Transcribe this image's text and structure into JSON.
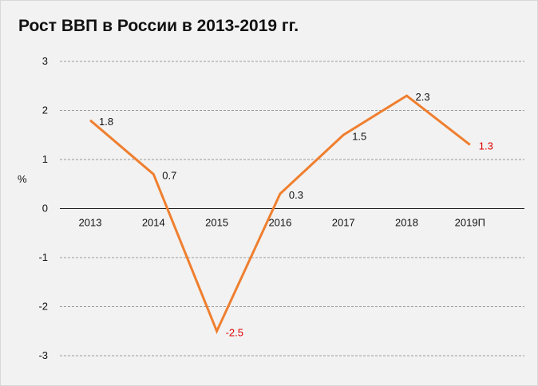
{
  "chart_data": {
    "type": "line",
    "title": "Рост ВВП в России в 2013-2019 гг.",
    "ylabel": "%",
    "xlabel": "",
    "ylim": [
      -3,
      3
    ],
    "yticks": [
      3,
      2,
      1,
      0,
      -1,
      -2,
      -3
    ],
    "categories": [
      "2013",
      "2014",
      "2015",
      "2016",
      "2017",
      "2018",
      "2019П"
    ],
    "series": [
      {
        "values": [
          1.8,
          0.7,
          -2.5,
          0.3,
          1.5,
          2.3,
          1.3
        ],
        "labels": [
          "1.8",
          "0.7",
          "-2.5",
          "0.3",
          "1.5",
          "2.3",
          "1.3"
        ],
        "label_colors": [
          "#111111",
          "#111111",
          "#e00000",
          "#111111",
          "#111111",
          "#111111",
          "#e00000"
        ],
        "color": "#ef7f2f"
      }
    ],
    "grid": true,
    "legend": "none"
  }
}
